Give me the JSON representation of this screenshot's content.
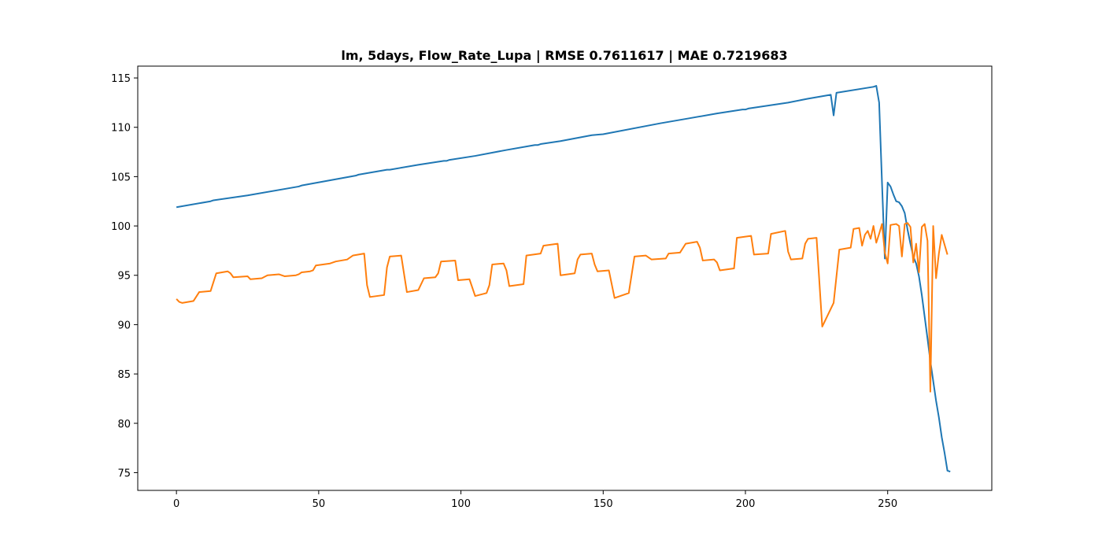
{
  "chart_data": {
    "type": "line",
    "title": "lm, 5days, Flow_Rate_Lupa | RMSE 0.7611617 | MAE 0.7219683",
    "xlabel": "",
    "ylabel": "",
    "xlim": [
      -13.6,
      286.6
    ],
    "ylim": [
      73.2,
      116.2
    ],
    "xticks": [
      0,
      50,
      100,
      150,
      200,
      250
    ],
    "yticks": [
      75,
      80,
      85,
      90,
      95,
      100,
      105,
      110,
      115
    ],
    "grid": false,
    "legend": "none",
    "series": [
      {
        "color": "#1f77b4",
        "points": [
          [
            0,
            101.9
          ],
          [
            12,
            102.5
          ],
          [
            13,
            102.6
          ],
          [
            25,
            103.1
          ],
          [
            43,
            104.0
          ],
          [
            44,
            104.1
          ],
          [
            63,
            105.1
          ],
          [
            64,
            105.2
          ],
          [
            72,
            105.6
          ],
          [
            74,
            105.7
          ],
          [
            75,
            105.7
          ],
          [
            85,
            106.2
          ],
          [
            94,
            106.6
          ],
          [
            95,
            106.6
          ],
          [
            96,
            106.7
          ],
          [
            105,
            107.1
          ],
          [
            116,
            107.7
          ],
          [
            124,
            108.1
          ],
          [
            126,
            108.2
          ],
          [
            127,
            108.2
          ],
          [
            128,
            108.3
          ],
          [
            135,
            108.6
          ],
          [
            146,
            109.2
          ],
          [
            150,
            109.3
          ],
          [
            170,
            110.4
          ],
          [
            180,
            110.9
          ],
          [
            190,
            111.4
          ],
          [
            199,
            111.8
          ],
          [
            200,
            111.8
          ],
          [
            201,
            111.9
          ],
          [
            215,
            112.5
          ],
          [
            222,
            112.9
          ],
          [
            230,
            113.3
          ],
          [
            231,
            111.2
          ],
          [
            232,
            113.5
          ],
          [
            245,
            114.1
          ],
          [
            246,
            114.2
          ],
          [
            247,
            112.5
          ],
          [
            248,
            104.4
          ],
          [
            249,
            96.7
          ],
          [
            250,
            104.4
          ],
          [
            251,
            104.0
          ],
          [
            252,
            103.2
          ],
          [
            253,
            102.5
          ],
          [
            254,
            102.4
          ],
          [
            255,
            102.0
          ],
          [
            256,
            101.3
          ],
          [
            257,
            99.6
          ],
          [
            258,
            98.2
          ],
          [
            259,
            96.9
          ],
          [
            260,
            96.2
          ],
          [
            261,
            94.9
          ],
          [
            262,
            93.0
          ],
          [
            263,
            90.8
          ],
          [
            264,
            88.6
          ],
          [
            265,
            86.3
          ],
          [
            266,
            84.3
          ],
          [
            267,
            82.3
          ],
          [
            268,
            80.6
          ],
          [
            269,
            78.6
          ],
          [
            270,
            77.0
          ],
          [
            271,
            75.2
          ],
          [
            272,
            75.1
          ]
        ]
      },
      {
        "color": "#ff7f0e",
        "points": [
          [
            0,
            92.6
          ],
          [
            1,
            92.3
          ],
          [
            2,
            92.2
          ],
          [
            6,
            92.4
          ],
          [
            8,
            93.3
          ],
          [
            12,
            93.4
          ],
          [
            14,
            95.2
          ],
          [
            18,
            95.4
          ],
          [
            19,
            95.2
          ],
          [
            20,
            94.8
          ],
          [
            25,
            94.9
          ],
          [
            26,
            94.6
          ],
          [
            30,
            94.7
          ],
          [
            32,
            95.0
          ],
          [
            36,
            95.1
          ],
          [
            37,
            95.0
          ],
          [
            38,
            94.9
          ],
          [
            42,
            95.0
          ],
          [
            43,
            95.1
          ],
          [
            44,
            95.3
          ],
          [
            47,
            95.4
          ],
          [
            48,
            95.5
          ],
          [
            49,
            96.0
          ],
          [
            54,
            96.2
          ],
          [
            56,
            96.4
          ],
          [
            60,
            96.6
          ],
          [
            62,
            97.0
          ],
          [
            66,
            97.2
          ],
          [
            67,
            94.0
          ],
          [
            68,
            92.8
          ],
          [
            73,
            93.0
          ],
          [
            74,
            95.8
          ],
          [
            75,
            96.9
          ],
          [
            79,
            97.0
          ],
          [
            81,
            93.3
          ],
          [
            85,
            93.5
          ],
          [
            87,
            94.7
          ],
          [
            91,
            94.8
          ],
          [
            92,
            95.2
          ],
          [
            93,
            96.4
          ],
          [
            98,
            96.5
          ],
          [
            99,
            94.5
          ],
          [
            103,
            94.6
          ],
          [
            105,
            92.9
          ],
          [
            109,
            93.2
          ],
          [
            110,
            94.0
          ],
          [
            111,
            96.1
          ],
          [
            115,
            96.2
          ],
          [
            116,
            95.5
          ],
          [
            117,
            93.9
          ],
          [
            122,
            94.1
          ],
          [
            123,
            97.0
          ],
          [
            128,
            97.2
          ],
          [
            129,
            98.0
          ],
          [
            134,
            98.2
          ],
          [
            135,
            95.0
          ],
          [
            140,
            95.2
          ],
          [
            141,
            96.6
          ],
          [
            142,
            97.1
          ],
          [
            146,
            97.2
          ],
          [
            147,
            96.1
          ],
          [
            148,
            95.4
          ],
          [
            152,
            95.5
          ],
          [
            154,
            92.7
          ],
          [
            159,
            93.2
          ],
          [
            161,
            96.9
          ],
          [
            165,
            97.0
          ],
          [
            166,
            96.8
          ],
          [
            167,
            96.6
          ],
          [
            172,
            96.7
          ],
          [
            173,
            97.2
          ],
          [
            177,
            97.3
          ],
          [
            179,
            98.2
          ],
          [
            183,
            98.4
          ],
          [
            184,
            97.8
          ],
          [
            185,
            96.5
          ],
          [
            189,
            96.6
          ],
          [
            190,
            96.3
          ],
          [
            191,
            95.5
          ],
          [
            196,
            95.7
          ],
          [
            197,
            98.8
          ],
          [
            202,
            99.0
          ],
          [
            203,
            97.1
          ],
          [
            208,
            97.2
          ],
          [
            209,
            99.2
          ],
          [
            214,
            99.5
          ],
          [
            215,
            97.4
          ],
          [
            216,
            96.6
          ],
          [
            220,
            96.7
          ],
          [
            221,
            98.2
          ],
          [
            222,
            98.7
          ],
          [
            225,
            98.8
          ],
          [
            227,
            89.8
          ],
          [
            231,
            92.2
          ],
          [
            233,
            97.6
          ],
          [
            237,
            97.8
          ],
          [
            238,
            99.7
          ],
          [
            240,
            99.8
          ],
          [
            241,
            98.0
          ],
          [
            242,
            99.1
          ],
          [
            243,
            99.5
          ],
          [
            244,
            98.7
          ],
          [
            245,
            100.0
          ],
          [
            246,
            98.3
          ],
          [
            247,
            99.2
          ],
          [
            248,
            100.2
          ],
          [
            249,
            97.3
          ],
          [
            250,
            96.2
          ],
          [
            251,
            100.1
          ],
          [
            253,
            100.2
          ],
          [
            254,
            100.0
          ],
          [
            255,
            96.9
          ],
          [
            256,
            100.2
          ],
          [
            257,
            100.3
          ],
          [
            258,
            99.9
          ],
          [
            259,
            96.3
          ],
          [
            260,
            98.2
          ],
          [
            261,
            95.3
          ],
          [
            262,
            99.9
          ],
          [
            263,
            100.2
          ],
          [
            264,
            98.5
          ],
          [
            265,
            83.2
          ],
          [
            266,
            100.0
          ],
          [
            267,
            94.7
          ],
          [
            268,
            97.2
          ],
          [
            269,
            99.1
          ],
          [
            270,
            98.1
          ],
          [
            271,
            97.1
          ]
        ]
      }
    ]
  }
}
